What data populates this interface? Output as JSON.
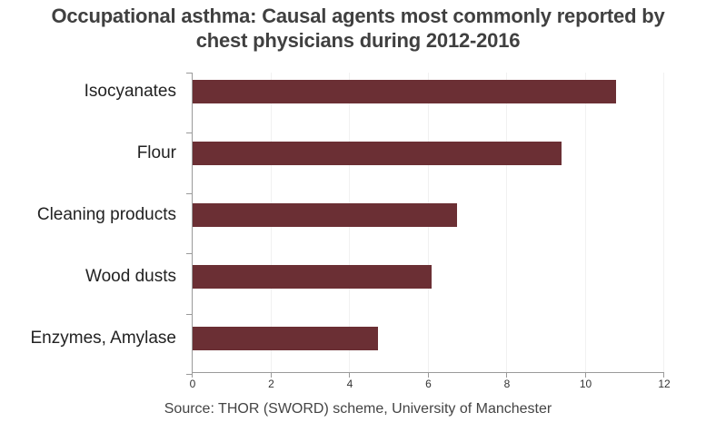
{
  "title_line1": "Occupational asthma: Causal agents most commonly reported by",
  "title_line2": "chest physicians during 2012-2016",
  "source": "Source: THOR (SWORD) scheme, University of Manchester",
  "colors": {
    "bar": "#6b2f34",
    "axis": "#9a9a9a",
    "grid": "#f1f1f1"
  },
  "chart_data": {
    "type": "bar",
    "orientation": "horizontal",
    "title": "Occupational asthma: Causal agents most commonly reported by chest physicians during 2012-2016",
    "categories": [
      "Isocyanates",
      "Flour",
      "Cleaning products",
      "Wood dusts",
      "Enzymes, Amylase"
    ],
    "values": [
      10.8,
      9.4,
      6.75,
      6.1,
      4.75
    ],
    "xlabel": "",
    "ylabel": "",
    "xlim": [
      0,
      12
    ],
    "xticks": [
      "0",
      "2",
      "4",
      "6",
      "8",
      "10",
      "12"
    ],
    "grid": true,
    "legend": null,
    "annotation": "Source: THOR (SWORD) scheme, University of Manchester"
  }
}
